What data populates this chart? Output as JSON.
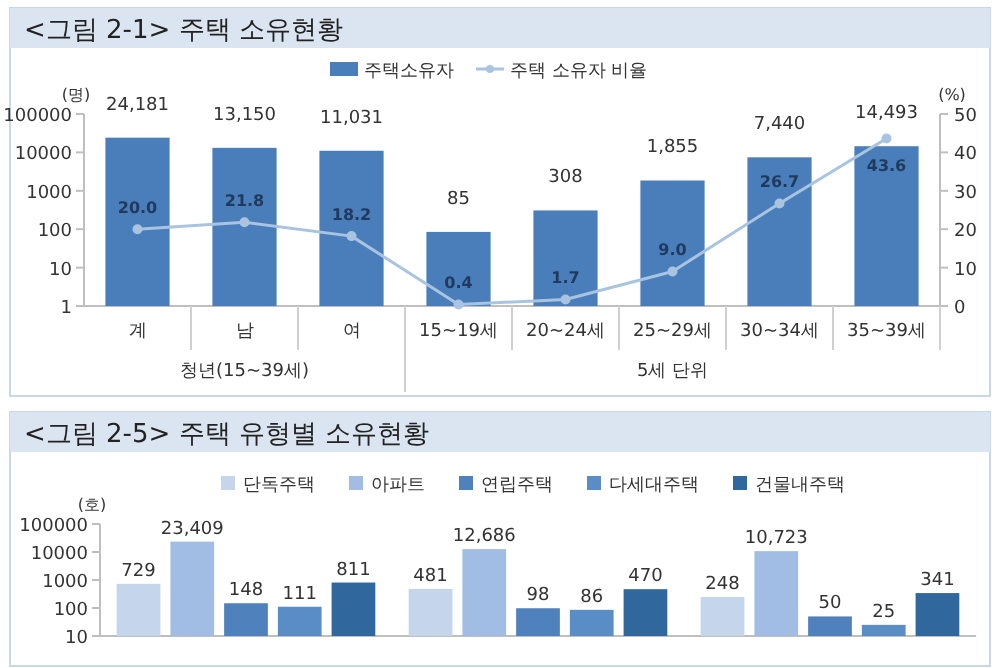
{
  "chart_data": [
    {
      "type": "bar",
      "title": "<그림 2-1> 주택 소유현황",
      "ylabel": "(명)",
      "y2label": "(%)",
      "categories": [
        "계",
        "남",
        "여",
        "15~19세",
        "20~24세",
        "25~29세",
        "30~34세",
        "35~39세"
      ],
      "series": [
        {
          "name": "주택소유자",
          "color": "#4a7ebb",
          "values": [
            24181,
            13150,
            11031,
            85,
            308,
            1855,
            7440,
            14493
          ],
          "value_labels": [
            "24,181",
            "13,150",
            "11,031",
            "85",
            "308",
            "1,855",
            "7,440",
            "14,493"
          ]
        },
        {
          "name": "주택 소유자 비율",
          "type": "line",
          "axis": "y2",
          "color": "#a9c4e0",
          "marker": "circle",
          "line_style": "solid",
          "values": [
            20.0,
            21.8,
            18.2,
            0.4,
            1.7,
            9.0,
            26.7,
            43.6
          ],
          "value_labels": [
            "20.0",
            "21.8",
            "18.2",
            "0.4",
            "1.7",
            "9.0",
            "26.7",
            "43.6"
          ]
        }
      ],
      "log": "y",
      "ylim": [
        1,
        100000
      ],
      "yticks": [
        1,
        10,
        100,
        1000,
        10000,
        100000
      ],
      "y2lim": [
        0,
        50
      ],
      "y2ticks": [
        0,
        10,
        20,
        30,
        40,
        50
      ],
      "legend": "top",
      "annotations": [
        "청년(15~39세)",
        "5세 단위"
      ]
    },
    {
      "type": "bar",
      "title": "<그림 2-5> 주택 유형별 소유현황",
      "ylabel": "(호)",
      "categories": [
        null,
        null,
        null
      ],
      "series": [
        {
          "name": "단독주택",
          "color": "#c5d6ec",
          "values": [
            729,
            481,
            248
          ],
          "value_labels": [
            "729",
            "481",
            "248"
          ]
        },
        {
          "name": "아파트",
          "color": "#a2bde3",
          "values": [
            23409,
            12686,
            10723
          ],
          "value_labels": [
            "23,409",
            "12,686",
            "10,723"
          ]
        },
        {
          "name": "연립주택",
          "color": "#4f81bd",
          "values": [
            148,
            98,
            50
          ],
          "value_labels": [
            "148",
            "98",
            "50"
          ]
        },
        {
          "name": "다세대주택",
          "color": "#5a8cc6",
          "values": [
            111,
            86,
            25
          ],
          "value_labels": [
            "111",
            "86",
            "25"
          ]
        },
        {
          "name": "건물내주택",
          "color": "#30689e",
          "values": [
            811,
            470,
            341
          ],
          "value_labels": [
            "811",
            "470",
            "341"
          ]
        }
      ],
      "log": "y",
      "ylim": [
        10,
        100000
      ],
      "yticks": [
        10,
        100,
        1000,
        10000,
        100000
      ],
      "legend": "top"
    }
  ]
}
